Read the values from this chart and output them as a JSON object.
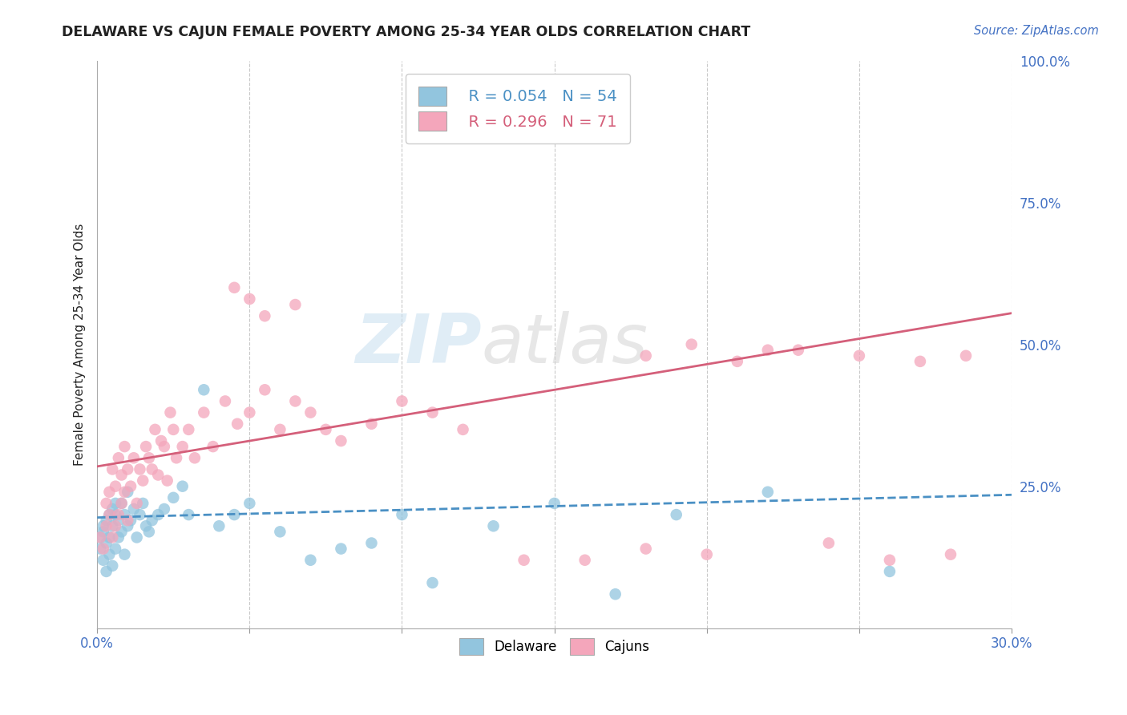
{
  "title": "DELAWARE VS CAJUN FEMALE POVERTY AMONG 25-34 YEAR OLDS CORRELATION CHART",
  "source": "Source: ZipAtlas.com",
  "ylabel": "Female Poverty Among 25-34 Year Olds",
  "xlim": [
    0.0,
    0.3
  ],
  "ylim": [
    0.0,
    1.0
  ],
  "xticks": [
    0.0,
    0.05,
    0.1,
    0.15,
    0.2,
    0.25,
    0.3
  ],
  "xticklabels": [
    "0.0%",
    "",
    "",
    "",
    "",
    "",
    "30.0%"
  ],
  "yticks_right": [
    0.0,
    0.25,
    0.5,
    0.75,
    1.0
  ],
  "yticklabels_right": [
    "",
    "25.0%",
    "50.0%",
    "75.0%",
    "100.0%"
  ],
  "legend_r_delaware": "R = 0.054",
  "legend_n_delaware": "N = 54",
  "legend_r_cajuns": "R = 0.296",
  "legend_n_cajuns": "N = 71",
  "delaware_color": "#92c5de",
  "cajuns_color": "#f4a6bb",
  "trendline_delaware_color": "#4a90c4",
  "trendline_cajuns_color": "#d45f7a",
  "watermark_zip": "ZIP",
  "watermark_atlas": "atlas",
  "background_color": "#ffffff",
  "grid_color": "#bbbbbb",
  "title_color": "#222222",
  "source_color": "#4472c4",
  "axis_label_color": "#222222",
  "tick_color": "#4472c4",
  "del_trend_x0": 0.0,
  "del_trend_y0": 0.195,
  "del_trend_x1": 0.3,
  "del_trend_y1": 0.235,
  "caj_trend_x0": 0.0,
  "caj_trend_y0": 0.285,
  "caj_trend_x1": 0.3,
  "caj_trend_y1": 0.555,
  "delaware_x": [
    0.001,
    0.001,
    0.002,
    0.002,
    0.002,
    0.003,
    0.003,
    0.003,
    0.004,
    0.004,
    0.004,
    0.005,
    0.005,
    0.005,
    0.006,
    0.006,
    0.006,
    0.007,
    0.007,
    0.008,
    0.008,
    0.009,
    0.009,
    0.01,
    0.01,
    0.011,
    0.012,
    0.013,
    0.014,
    0.015,
    0.016,
    0.017,
    0.018,
    0.02,
    0.022,
    0.025,
    0.028,
    0.03,
    0.035,
    0.04,
    0.045,
    0.05,
    0.06,
    0.07,
    0.08,
    0.09,
    0.1,
    0.11,
    0.13,
    0.15,
    0.17,
    0.19,
    0.22,
    0.26
  ],
  "delaware_y": [
    0.14,
    0.16,
    0.12,
    0.17,
    0.18,
    0.1,
    0.15,
    0.19,
    0.13,
    0.2,
    0.16,
    0.11,
    0.18,
    0.21,
    0.14,
    0.2,
    0.22,
    0.16,
    0.19,
    0.17,
    0.22,
    0.13,
    0.2,
    0.18,
    0.24,
    0.19,
    0.21,
    0.16,
    0.2,
    0.22,
    0.18,
    0.17,
    0.19,
    0.2,
    0.21,
    0.23,
    0.25,
    0.2,
    0.42,
    0.18,
    0.2,
    0.22,
    0.17,
    0.12,
    0.14,
    0.15,
    0.2,
    0.08,
    0.18,
    0.22,
    0.06,
    0.2,
    0.24,
    0.1
  ],
  "cajuns_x": [
    0.001,
    0.002,
    0.003,
    0.003,
    0.004,
    0.004,
    0.005,
    0.005,
    0.006,
    0.006,
    0.007,
    0.007,
    0.008,
    0.008,
    0.009,
    0.009,
    0.01,
    0.01,
    0.011,
    0.012,
    0.013,
    0.014,
    0.015,
    0.016,
    0.017,
    0.018,
    0.019,
    0.02,
    0.021,
    0.022,
    0.023,
    0.024,
    0.025,
    0.026,
    0.028,
    0.03,
    0.032,
    0.035,
    0.038,
    0.042,
    0.046,
    0.05,
    0.055,
    0.06,
    0.065,
    0.07,
    0.075,
    0.08,
    0.09,
    0.1,
    0.11,
    0.12,
    0.14,
    0.16,
    0.18,
    0.2,
    0.22,
    0.24,
    0.26,
    0.28,
    0.05,
    0.045,
    0.055,
    0.065,
    0.18,
    0.195,
    0.21,
    0.23,
    0.25,
    0.27,
    0.285
  ],
  "cajuns_y": [
    0.16,
    0.14,
    0.18,
    0.22,
    0.2,
    0.24,
    0.16,
    0.28,
    0.18,
    0.25,
    0.2,
    0.3,
    0.22,
    0.27,
    0.24,
    0.32,
    0.19,
    0.28,
    0.25,
    0.3,
    0.22,
    0.28,
    0.26,
    0.32,
    0.3,
    0.28,
    0.35,
    0.27,
    0.33,
    0.32,
    0.26,
    0.38,
    0.35,
    0.3,
    0.32,
    0.35,
    0.3,
    0.38,
    0.32,
    0.4,
    0.36,
    0.38,
    0.42,
    0.35,
    0.4,
    0.38,
    0.35,
    0.33,
    0.36,
    0.4,
    0.38,
    0.35,
    0.12,
    0.12,
    0.14,
    0.13,
    0.49,
    0.15,
    0.12,
    0.13,
    0.58,
    0.6,
    0.55,
    0.57,
    0.48,
    0.5,
    0.47,
    0.49,
    0.48,
    0.47,
    0.48
  ]
}
